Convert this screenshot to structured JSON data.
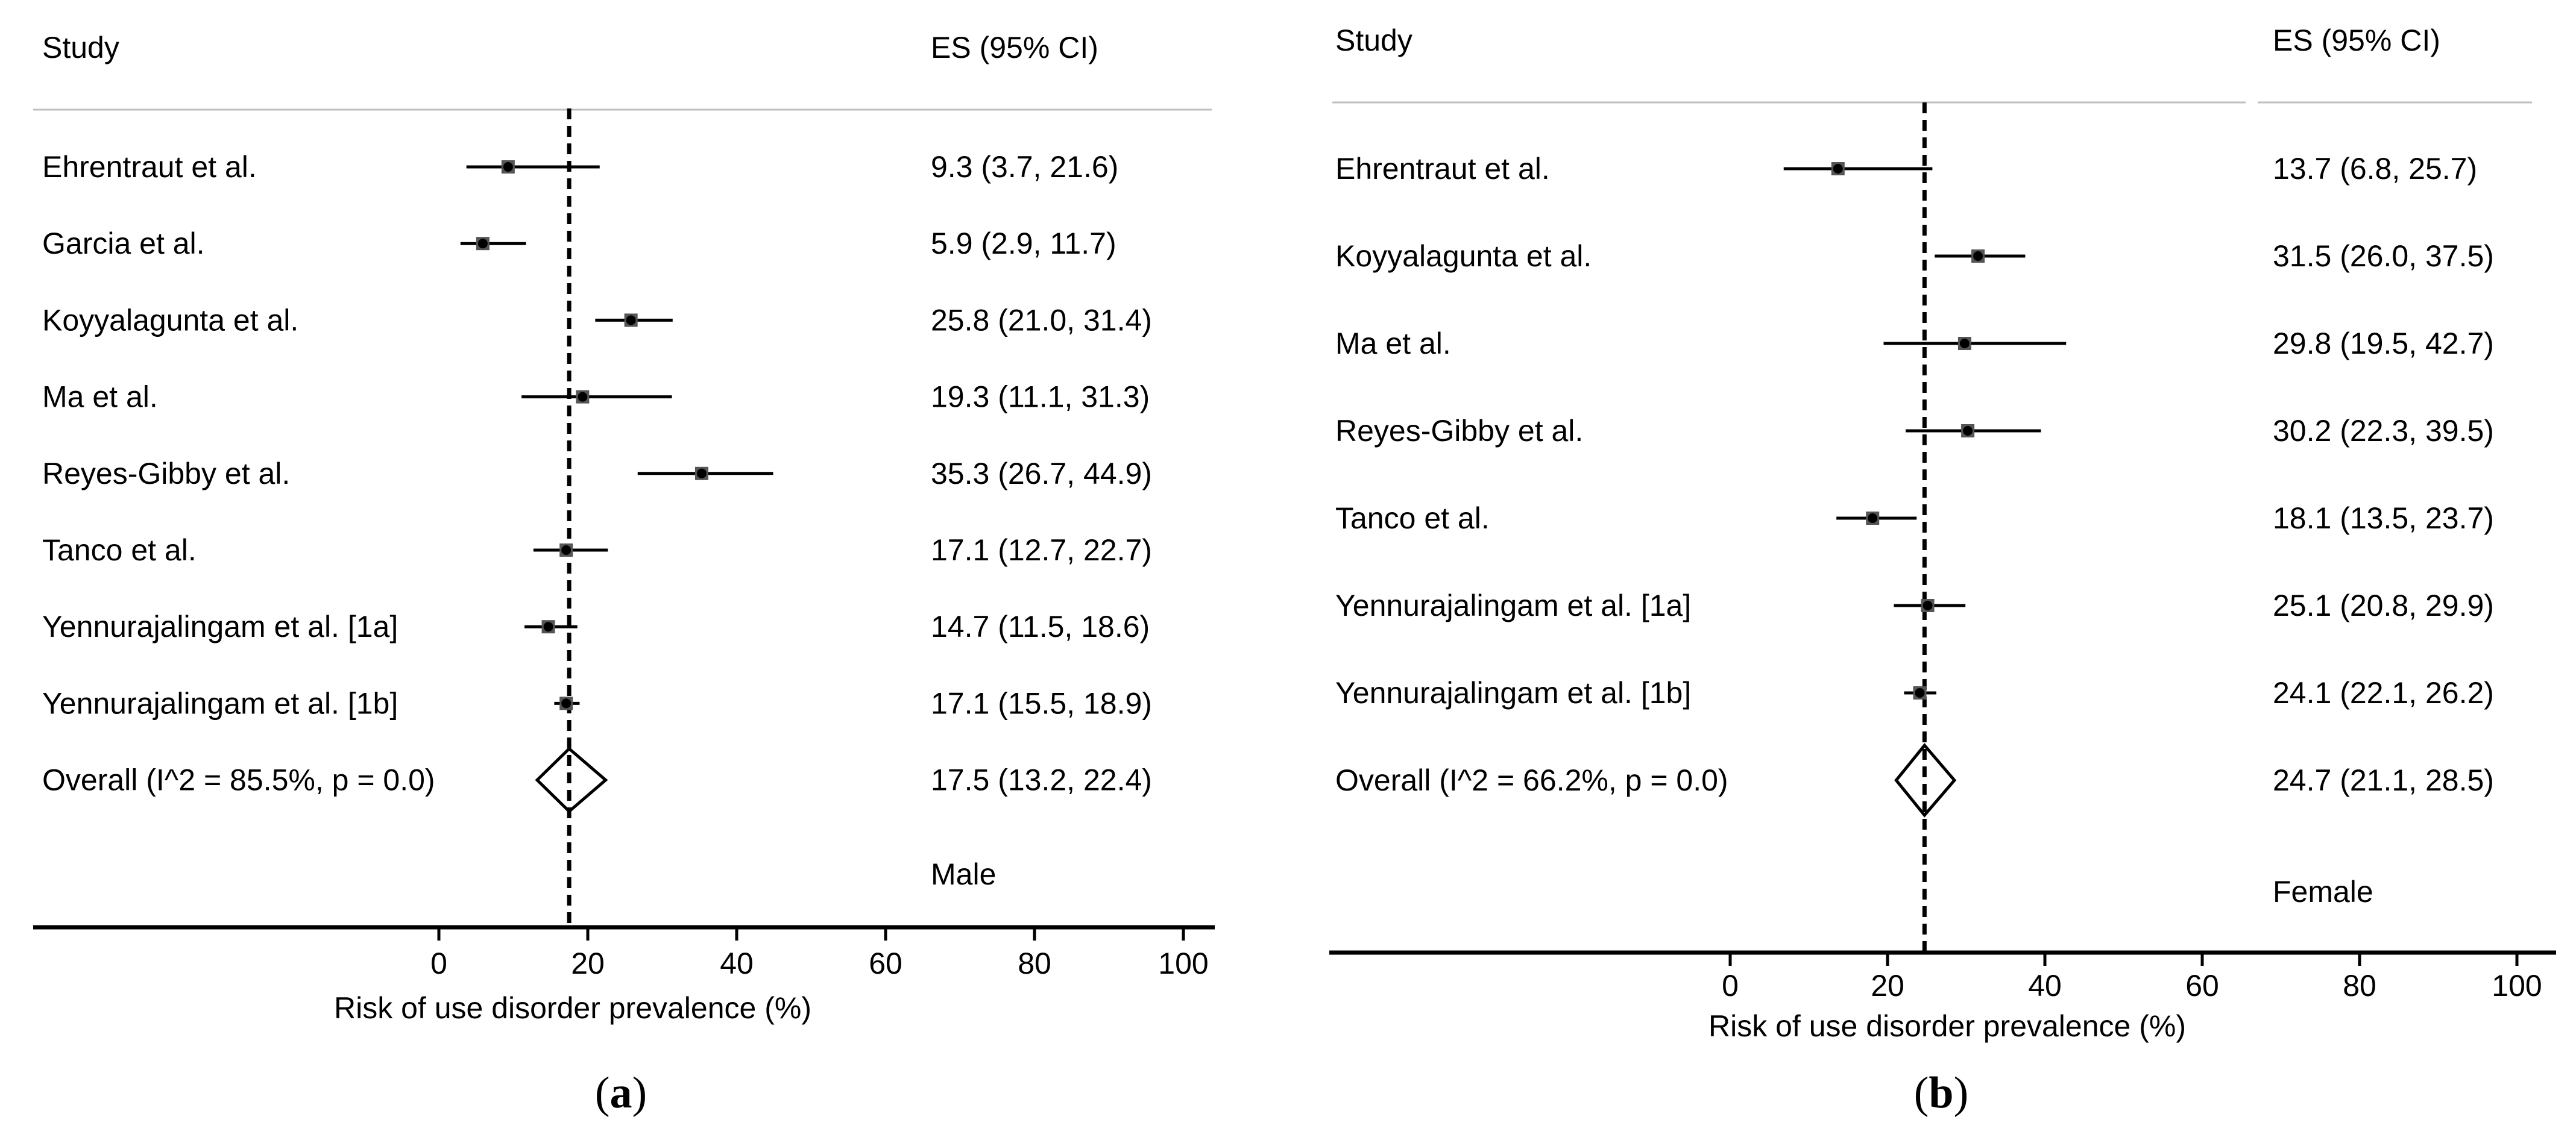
{
  "chart_data": [
    {
      "type": "forest",
      "panel_label": "(a)",
      "group_label": "Male",
      "header_study": "Study",
      "header_es": "ES (95% CI)",
      "xlabel": "Risk of use disorder prevalence (%)",
      "xlim": [
        0,
        100
      ],
      "xticks": [
        0,
        20,
        40,
        60,
        80,
        100
      ],
      "reference_line": 17.5,
      "studies": [
        {
          "name": "Ehrentraut et al.",
          "es": 9.3,
          "lo": 3.7,
          "hi": 21.6,
          "label": "9.3 (3.7, 21.6)"
        },
        {
          "name": "Garcia et al.",
          "es": 5.9,
          "lo": 2.9,
          "hi": 11.7,
          "label": "5.9 (2.9, 11.7)"
        },
        {
          "name": "Koyyalagunta et al.",
          "es": 25.8,
          "lo": 21.0,
          "hi": 31.4,
          "label": "25.8 (21.0, 31.4)"
        },
        {
          "name": "Ma et al.",
          "es": 19.3,
          "lo": 11.1,
          "hi": 31.3,
          "label": "19.3 (11.1, 31.3)"
        },
        {
          "name": "Reyes-Gibby et al.",
          "es": 35.3,
          "lo": 26.7,
          "hi": 44.9,
          "label": "35.3 (26.7, 44.9)"
        },
        {
          "name": "Tanco et al.",
          "es": 17.1,
          "lo": 12.7,
          "hi": 22.7,
          "label": "17.1 (12.7, 22.7)"
        },
        {
          "name": "Yennurajalingam et al. [1a]",
          "es": 14.7,
          "lo": 11.5,
          "hi": 18.6,
          "label": "14.7 (11.5, 18.6)"
        },
        {
          "name": "Yennurajalingam et al. [1b]",
          "es": 17.1,
          "lo": 15.5,
          "hi": 18.9,
          "label": "17.1 (15.5, 18.9)"
        }
      ],
      "overall": {
        "name": "Overall  (I^2 = 85.5%, p = 0.0)",
        "es": 17.5,
        "lo": 13.2,
        "hi": 22.4,
        "label": "17.5 (13.2, 22.4)"
      }
    },
    {
      "type": "forest",
      "panel_label": "(b)",
      "group_label": "Female",
      "header_study": "Study",
      "header_es": "ES (95% CI)",
      "xlabel": "Risk of use disorder prevalence (%)",
      "xlim": [
        0,
        100
      ],
      "xticks": [
        0,
        20,
        40,
        60,
        80,
        100
      ],
      "reference_line": 24.7,
      "studies": [
        {
          "name": "Ehrentraut et al.",
          "es": 13.7,
          "lo": 6.8,
          "hi": 25.7,
          "label": "13.7 (6.8, 25.7)"
        },
        {
          "name": "Koyyalagunta et al.",
          "es": 31.5,
          "lo": 26.0,
          "hi": 37.5,
          "label": "31.5 (26.0, 37.5)"
        },
        {
          "name": "Ma et al.",
          "es": 29.8,
          "lo": 19.5,
          "hi": 42.7,
          "label": "29.8 (19.5, 42.7)"
        },
        {
          "name": "Reyes-Gibby et al.",
          "es": 30.2,
          "lo": 22.3,
          "hi": 39.5,
          "label": "30.2 (22.3, 39.5)"
        },
        {
          "name": "Tanco et al.",
          "es": 18.1,
          "lo": 13.5,
          "hi": 23.7,
          "label": "18.1 (13.5, 23.7)"
        },
        {
          "name": "Yennurajalingam et al. [1a]",
          "es": 25.1,
          "lo": 20.8,
          "hi": 29.9,
          "label": "25.1 (20.8, 29.9)"
        },
        {
          "name": "Yennurajalingam et al. [1b]",
          "es": 24.1,
          "lo": 22.1,
          "hi": 26.2,
          "label": "24.1 (22.1, 26.2)"
        }
      ],
      "overall": {
        "name": "Overall  (I^2 = 66.2%, p = 0.0)",
        "es": 24.7,
        "lo": 21.1,
        "hi": 28.5,
        "label": "24.7 (21.1, 28.5)"
      }
    }
  ]
}
